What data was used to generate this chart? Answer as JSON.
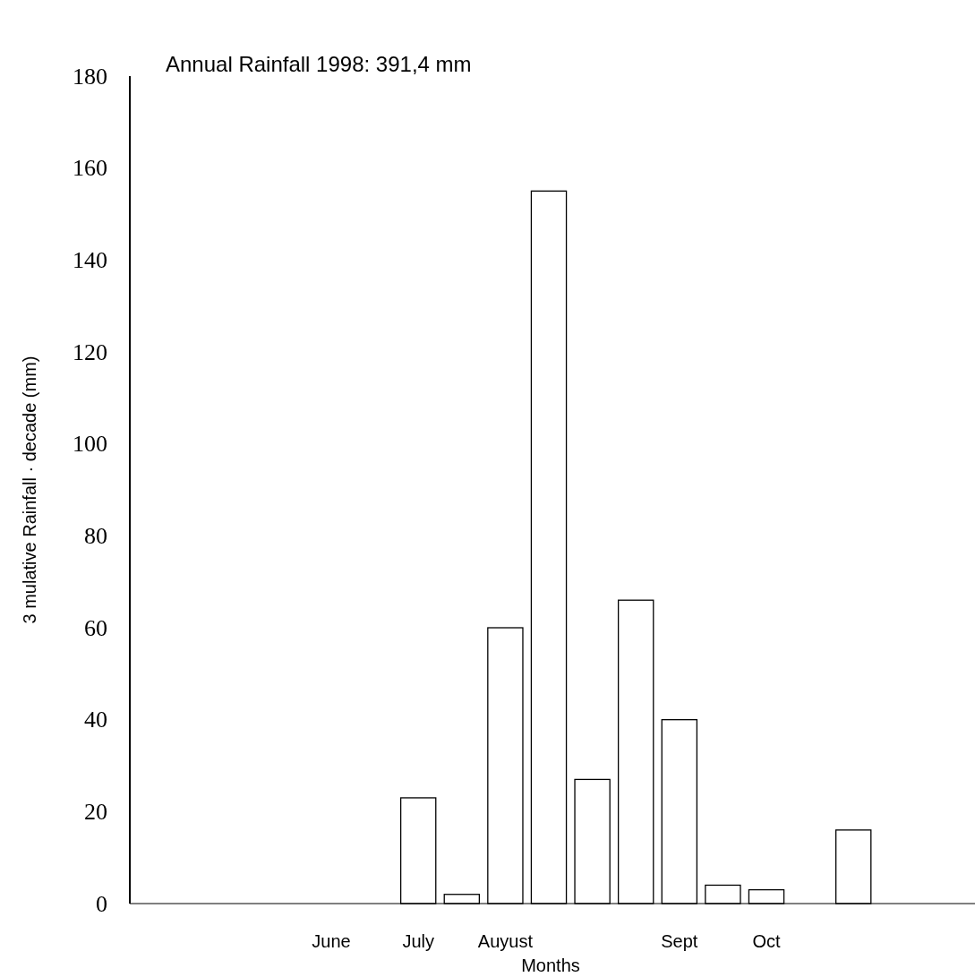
{
  "chart_data": {
    "type": "bar",
    "title": "Annual Rainfall 1998: 391,4 mm",
    "xlabel": "Months",
    "ylabel": "3 mulative Rainfall · decade (mm)",
    "categories": [
      null,
      null,
      null,
      null,
      "June",
      null,
      "July",
      null,
      "Auyust",
      null,
      null,
      null,
      "Sept",
      null,
      "Oct",
      null,
      null,
      null,
      null
    ],
    "values": [
      0,
      0,
      0,
      0,
      0,
      0,
      23,
      2,
      60,
      155,
      27,
      66,
      40,
      4,
      3,
      0,
      16,
      0,
      0
    ],
    "color": "#ffffff",
    "ylim": [
      0,
      180
    ],
    "yticks": [
      0,
      20,
      40,
      60,
      80,
      100,
      120,
      140,
      160,
      180
    ],
    "grid": false
  }
}
